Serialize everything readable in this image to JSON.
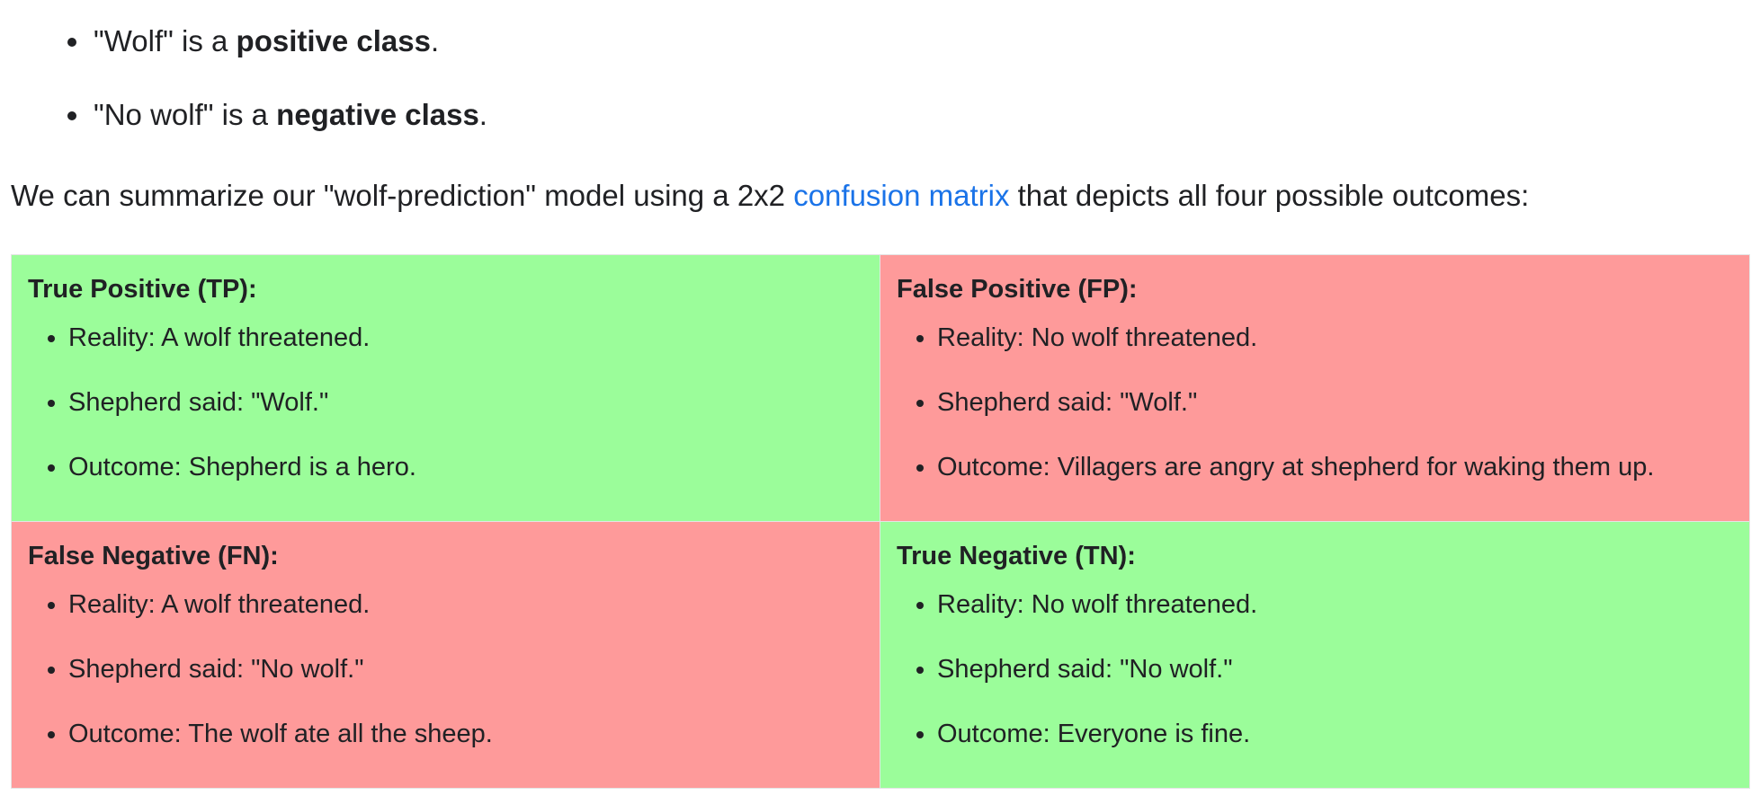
{
  "classes": [
    {
      "quote": "\"Wolf\" is a ",
      "bold": "positive class",
      "end": "."
    },
    {
      "quote": "\"No wolf\" is a ",
      "bold": "negative class",
      "end": "."
    }
  ],
  "intro": {
    "before": "We can summarize our \"wolf-prediction\" model using a 2x2 ",
    "link": "confusion matrix",
    "after": " that depicts all four possible outcomes:"
  },
  "matrix": {
    "tp": {
      "title": "True Positive (TP):",
      "items": [
        "Reality: A wolf threatened.",
        "Shepherd said: \"Wolf.\"",
        "Outcome: Shepherd is a hero."
      ]
    },
    "fp": {
      "title": "False Positive (FP):",
      "items": [
        "Reality: No wolf threatened.",
        "Shepherd said: \"Wolf.\"",
        "Outcome: Villagers are angry at shepherd for waking them up."
      ]
    },
    "fn": {
      "title": "False Negative (FN):",
      "items": [
        "Reality: A wolf threatened.",
        "Shepherd said: \"No wolf.\"",
        "Outcome: The wolf ate all the sheep."
      ]
    },
    "tn": {
      "title": "True Negative (TN):",
      "items": [
        "Reality: No wolf threatened.",
        "Shepherd said: \"No wolf.\"",
        "Outcome: Everyone is fine."
      ]
    }
  },
  "colors": {
    "correct": "#9bfd9a",
    "incorrect": "#fe9a9a",
    "link": "#1a73e8"
  }
}
